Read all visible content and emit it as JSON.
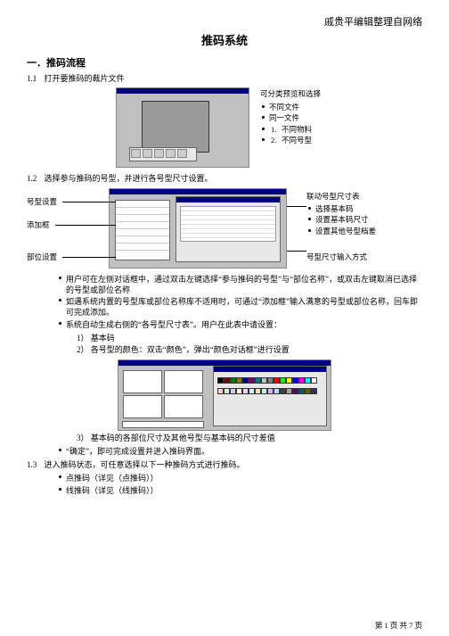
{
  "header": {
    "credit": "戚贵平编辑整理自网络"
  },
  "title": "推码系统",
  "section1": {
    "heading": "一．推码流程",
    "s11_num": "1.1",
    "s11_text": "打开要推码的裁片文件",
    "fig1_side": {
      "caption": "可分类预览和选择",
      "items": [
        "不同文件",
        "同一文件"
      ],
      "numitems": [
        "不同物料",
        "不同号型"
      ]
    },
    "s12_num": "1.2",
    "s12_text": "选择参与推码的号型，并进行各号型尺寸设置。",
    "fig2_leftlabels": {
      "a": "号型设置",
      "b": "添加框",
      "c": "部位设置"
    },
    "fig2_side": {
      "caption": "联动号型尺寸表",
      "items": [
        "选择基本码",
        "设置基本码尺寸",
        "设置其他号型档差"
      ],
      "lower": "号型尺寸输入方式"
    },
    "bullets_a": [
      "用户可在左侧对话框中，通过双击左键选择“参与推码的号型”与“部位名称”，或双击左键取消已选择的号型或部位名称",
      "如遇系统内置的号型库或部位名称库不适用时，可通过“添加框”输入满意的号型或部位名称，回车即可完成添加。",
      "系统自动生成右侧的“各号型尺寸表”。用户在此表中请设置："
    ],
    "sub_b": {
      "n1": "1）",
      "t1": "基本码",
      "n2": "2）",
      "t2": "各号型的颜色：双击“颜色”，弹出“颜色对话框”进行设置"
    },
    "sub_c": {
      "n3": "3）",
      "t3": "基本码的各部位尺寸及其他号型与基本码的尺寸差值"
    },
    "bullets_b": [
      "“确定”，即可完成设置并进入推码界面。"
    ],
    "s13_num": "1.3",
    "s13_text": "进入推码状态，可任意选择以下一种推码方式进行推码。",
    "bullets_c": [
      "点推码（详见（点推码））",
      "线推码（详见（线推码））"
    ]
  },
  "palette": [
    "#000000",
    "#7f0000",
    "#007f00",
    "#7f7f00",
    "#00007f",
    "#7f007f",
    "#007f7f",
    "#c0c0c0",
    "#808080",
    "#ff0000",
    "#00ff00",
    "#ffff00",
    "#0000ff",
    "#ff00ff",
    "#00ffff",
    "#ffffff",
    "#ffcccc",
    "#ccffcc",
    "#ccccff",
    "#ffffcc",
    "#ffccff",
    "#ccffff",
    "#ffe0b0",
    "#b0ffe0",
    "#e0b0ff",
    "#b0e0ff",
    "#404040",
    "#a0a0a0",
    "#600060",
    "#006060",
    "#606000",
    "#303060"
  ],
  "footer": {
    "page": "第 1 页 共 7 页"
  }
}
